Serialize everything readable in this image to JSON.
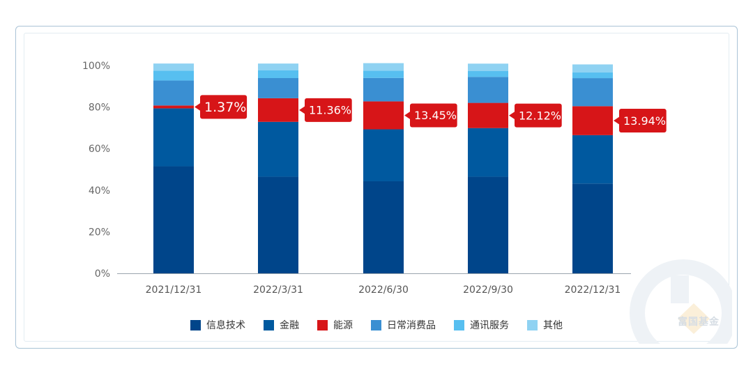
{
  "chart_data": {
    "type": "bar",
    "stacked": true,
    "categories": [
      "2021/12/31",
      "2022/3/31",
      "2022/6/30",
      "2022/9/30",
      "2022/12/31"
    ],
    "ylim": [
      0,
      100
    ],
    "yticks": [
      "0%",
      "20%",
      "40%",
      "60%",
      "80%",
      "100%"
    ],
    "series": [
      {
        "name": "信息技术",
        "color": "#00458a",
        "values": [
          51.5,
          46.5,
          44.3,
          46.5,
          43.2
        ]
      },
      {
        "name": "金融",
        "color": "#00599f",
        "values": [
          27.9,
          26.4,
          25.0,
          23.4,
          23.3
        ]
      },
      {
        "name": "能源",
        "color": "#d71518",
        "values": [
          1.37,
          11.36,
          13.45,
          12.12,
          13.94
        ]
      },
      {
        "name": "日常消费品",
        "color": "#3a8fd2",
        "values": [
          12.0,
          9.7,
          11.3,
          12.5,
          13.5
        ]
      },
      {
        "name": "通讯服务",
        "color": "#57bff0",
        "values": [
          4.8,
          3.8,
          3.5,
          2.8,
          2.7
        ]
      },
      {
        "name": "其他",
        "color": "#8fd2f2",
        "values": [
          3.4,
          3.2,
          3.6,
          3.6,
          3.9
        ]
      }
    ],
    "annotations": [
      "1.37%",
      "11.36%",
      "13.45%",
      "12.12%",
      "13.94%"
    ],
    "legend_position": "bottom"
  },
  "watermark": {
    "text": "富国基金"
  }
}
